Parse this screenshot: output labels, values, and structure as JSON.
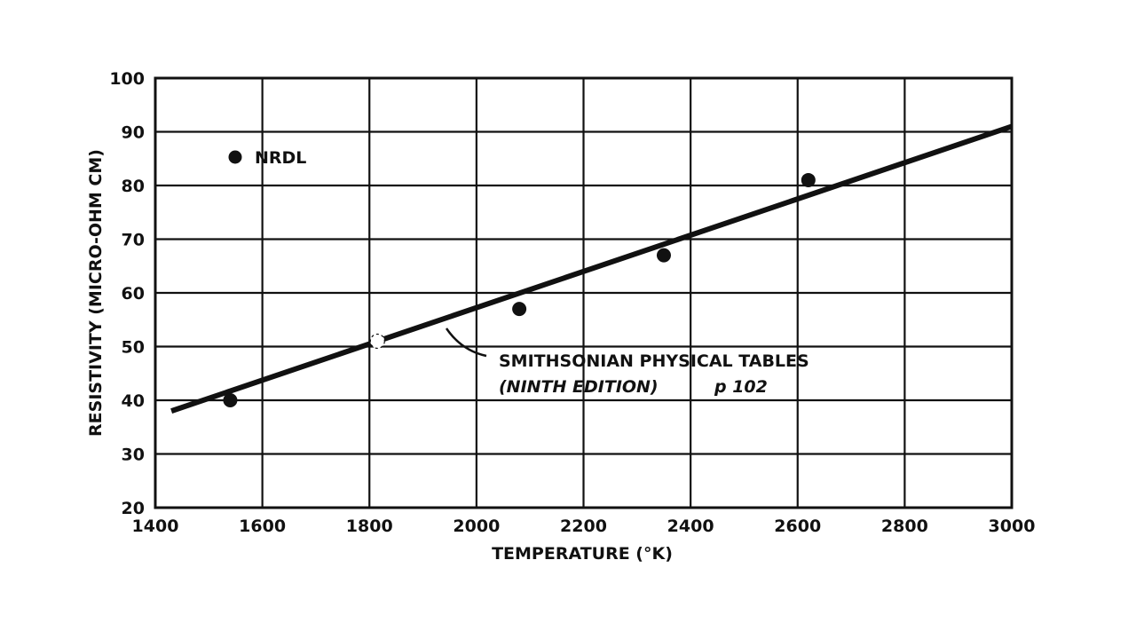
{
  "chart_data": {
    "type": "scatter",
    "xlabel": "TEMPERATURE (°K)",
    "ylabel": "RESISTIVITY (MICRO-OHM CM)",
    "xlim": [
      1400,
      3000
    ],
    "ylim": [
      20,
      100
    ],
    "x_ticks": [
      1400,
      1600,
      1800,
      2000,
      2200,
      2400,
      2600,
      2800,
      3000
    ],
    "y_ticks": [
      20,
      30,
      40,
      50,
      60,
      70,
      80,
      90,
      100
    ],
    "grid": true,
    "legend": {
      "marker_label": "NRDL",
      "position": "top-left"
    },
    "series": [
      {
        "name": "NRDL",
        "kind": "points",
        "x": [
          1540,
          2080,
          2350,
          2620
        ],
        "y": [
          40,
          57,
          67,
          81
        ]
      },
      {
        "kind": "line",
        "x": [
          1430,
          3000
        ],
        "y": [
          38,
          91
        ]
      }
    ],
    "annotations": {
      "line_label_1": "SMITHSONIAN PHYSICAL TABLES",
      "line_label_2": "(NINTH EDITION)",
      "line_label_3": "p 102",
      "label_anchor": {
        "x": 1950,
        "y": 53
      }
    }
  }
}
